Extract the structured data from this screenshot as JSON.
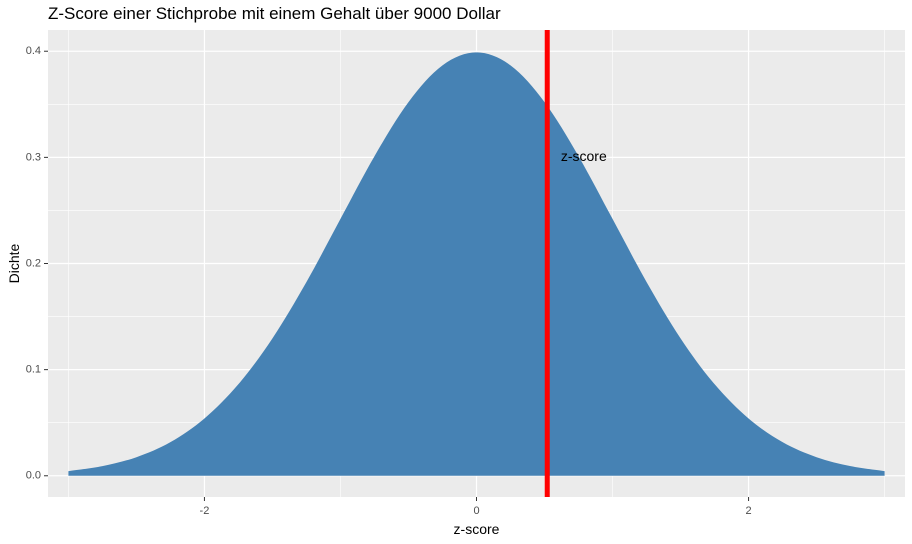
{
  "chart_data": {
    "type": "area",
    "title": "Z-Score einer Stichprobe mit einem Gehalt über 9000 Dollar",
    "xlabel": "z-score",
    "ylabel": "Dichte",
    "xlim": [
      -3.15,
      3.15
    ],
    "ylim": [
      -0.02,
      0.42
    ],
    "x_ticks": [
      -2,
      0,
      2
    ],
    "x_tick_labels": [
      "-2",
      "0",
      "2"
    ],
    "y_ticks": [
      0.0,
      0.1,
      0.2,
      0.3,
      0.4
    ],
    "y_tick_labels": [
      "0.0",
      "0.1",
      "0.2",
      "0.3",
      "0.4"
    ],
    "grid": true,
    "legend": "none",
    "series": [
      {
        "x": [
          -3.0,
          -2.75,
          -2.5,
          -2.25,
          -2.0,
          -1.75,
          -1.5,
          -1.25,
          -1.0,
          -0.75,
          -0.5,
          -0.25,
          0.0,
          0.25,
          0.5,
          0.75,
          1.0,
          1.25,
          1.5,
          1.75,
          2.0,
          2.25,
          2.5,
          2.75,
          3.0
        ],
        "y": [
          0.0044,
          0.0091,
          0.0175,
          0.0317,
          0.054,
          0.0863,
          0.1295,
          0.1826,
          0.242,
          0.3011,
          0.3521,
          0.3867,
          0.3989,
          0.3867,
          0.3521,
          0.3011,
          0.242,
          0.1826,
          0.1295,
          0.0863,
          0.054,
          0.0317,
          0.0175,
          0.0091,
          0.0044
        ],
        "color": "#4682b4"
      }
    ],
    "vline": {
      "x": 0.52,
      "color": "#ff0000"
    },
    "annotation": {
      "label": "z-score",
      "x": 0.62,
      "y": 0.3
    }
  }
}
